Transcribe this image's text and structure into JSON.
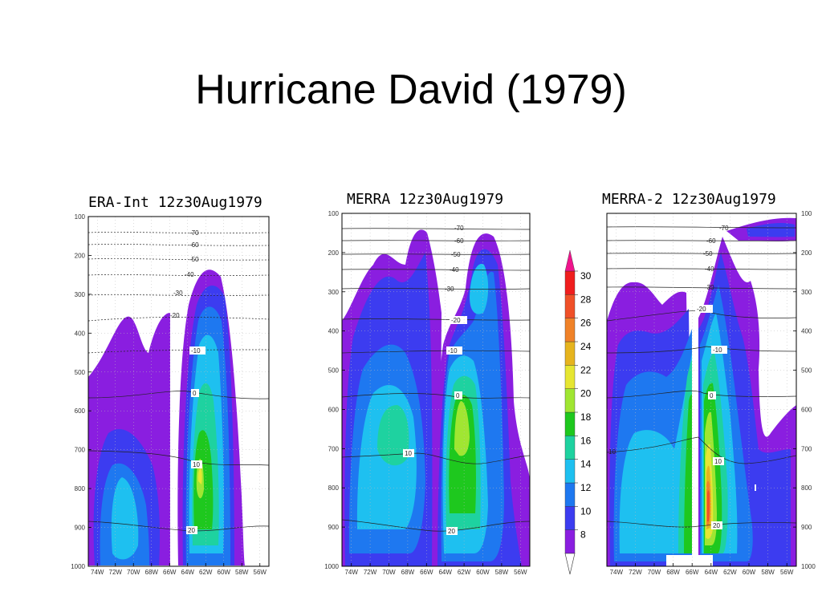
{
  "slide": {
    "title": "Hurricane David (1979)"
  },
  "colors": {
    "c8": "#8a1ee0",
    "c10": "#3c3cf0",
    "c12": "#1e78f0",
    "c14": "#1ec0f0",
    "c16": "#1ed2a0",
    "c18": "#1ec81e",
    "c20": "#a0e632",
    "c22": "#e6e632",
    "c24": "#e6b41e",
    "c26": "#f08228",
    "c28": "#f05028",
    "c30": "#f01e1e",
    "c32": "#f0148c"
  },
  "colorbar": {
    "labels": [
      "30",
      "28",
      "26",
      "24",
      "22",
      "20",
      "18",
      "16",
      "14",
      "12",
      "10",
      "8"
    ]
  },
  "chart_data": [
    {
      "type": "heatmap",
      "title": "ERA-Int 12z30Aug1979",
      "x_ticks": [
        "74W",
        "72W",
        "70W",
        "68W",
        "66W",
        "64W",
        "62W",
        "60W",
        "58W",
        "56W"
      ],
      "y_ticks": [
        "100",
        "200",
        "300",
        "400",
        "500",
        "600",
        "700",
        "800",
        "900",
        "1000"
      ],
      "y_range": [
        1000,
        100
      ],
      "x_range": [
        "75W",
        "55W"
      ],
      "contour_labels": [
        "-70",
        "-60",
        "-50",
        "-40",
        "-30",
        "-20",
        "-10",
        "0",
        "10",
        "20"
      ]
    },
    {
      "type": "heatmap",
      "title": "MERRA 12z30Aug1979",
      "x_ticks": [
        "74W",
        "72W",
        "70W",
        "68W",
        "66W",
        "64W",
        "62W",
        "60W",
        "58W",
        "56W"
      ],
      "y_ticks": [
        "100",
        "200",
        "300",
        "400",
        "500",
        "600",
        "700",
        "800",
        "900",
        "1000"
      ],
      "y_range": [
        1000,
        100
      ],
      "x_range": [
        "75W",
        "55W"
      ],
      "contour_labels": [
        "-70",
        "-60",
        "-50",
        "-40",
        "-30",
        "-20",
        "-10",
        "0",
        "10",
        "20"
      ]
    },
    {
      "type": "heatmap",
      "title": "MERRA-2 12z30Aug1979",
      "x_ticks": [
        "74W",
        "72W",
        "70W",
        "68W",
        "66W",
        "64W",
        "62W",
        "60W",
        "58W",
        "56W"
      ],
      "y_ticks": [
        "100",
        "200",
        "300",
        "400",
        "500",
        "600",
        "700",
        "800",
        "900",
        "1000"
      ],
      "y_range": [
        1000,
        100
      ],
      "x_range": [
        "75W",
        "55W"
      ],
      "contour_labels": [
        "-70",
        "-60",
        "-50",
        "-40",
        "-30",
        "-20",
        "-10",
        "0",
        "10",
        "20",
        "-10",
        "10"
      ]
    }
  ]
}
